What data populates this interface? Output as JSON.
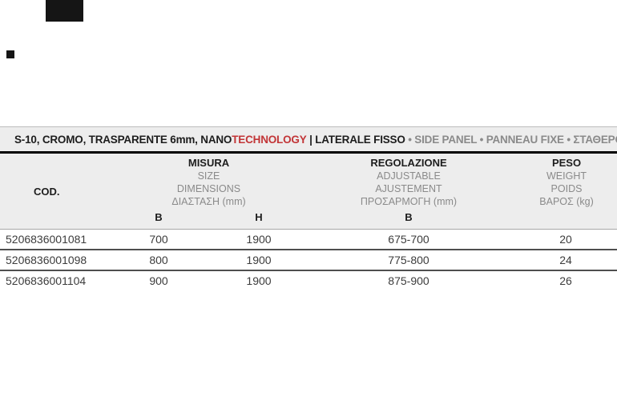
{
  "accent": {
    "highlight_color": "#c23537",
    "band_bg": "#ededed"
  },
  "title_bar": {
    "product": "S-10, CROMO, TRASPARENTE 6mm, NANO",
    "highlight": "TECHNOLOGY",
    "divider": " | ",
    "name_it": "LATERALE FISSO",
    "bullet": " • ",
    "name_translations": "SIDE PANEL • PANNEAU FIXE • ΣΤΑΘΕΡΟ Κ"
  },
  "table": {
    "header": {
      "cod": "COD.",
      "misura": [
        "MISURA",
        "SIZE",
        "DIMENSIONS",
        "ΔΙΑΣΤΑΣΗ (mm)"
      ],
      "regolazione": [
        "REGOLAZIONE",
        "ADJUSTABLE",
        "AJUSTEMENT",
        "ΠΡΟΣΑΡΜΟΓΗ (mm)"
      ],
      "peso": [
        "PESO",
        "WEIGHT",
        "POIDS",
        "ΒΑΡΟΣ (kg)"
      ],
      "sub_b": "B",
      "sub_h": "H",
      "sub_b2": "B"
    },
    "rows": [
      {
        "cod": "5206836001081",
        "b": "700",
        "h": "1900",
        "adjustable": "675-700",
        "weight": "20"
      },
      {
        "cod": "5206836001098",
        "b": "800",
        "h": "1900",
        "adjustable": "775-800",
        "weight": "24"
      },
      {
        "cod": "5206836001104",
        "b": "900",
        "h": "1900",
        "adjustable": "875-900",
        "weight": "26"
      }
    ]
  }
}
